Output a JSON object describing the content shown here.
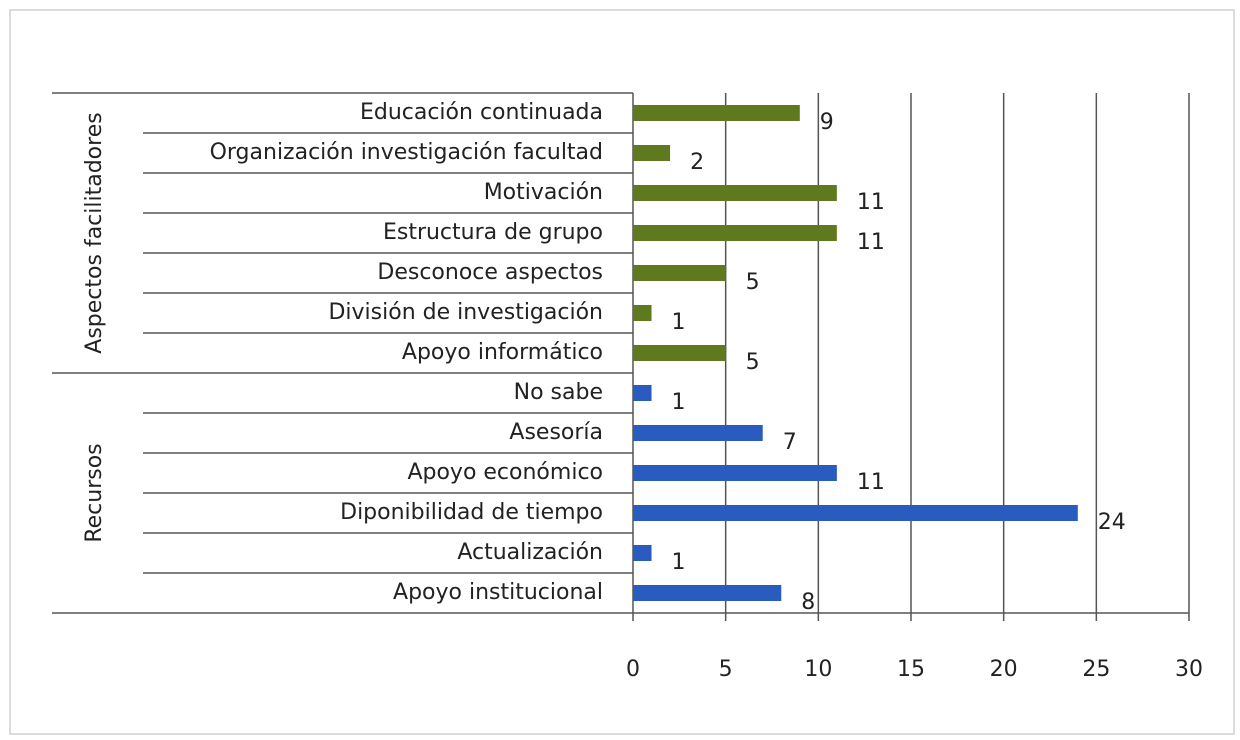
{
  "chart_data": {
    "type": "bar",
    "orientation": "horizontal",
    "groups": [
      {
        "name": "Aspectos facilitadores",
        "color": "#5f7a1e",
        "categories": [
          "Educación continuada",
          "Organización investigación facultad",
          "Motivación",
          "Estructura de grupo",
          "Desconoce aspectos",
          "División de investigación",
          "Apoyo informático"
        ],
        "values": [
          9,
          2,
          11,
          11,
          5,
          1,
          5
        ]
      },
      {
        "name": "Recursos",
        "color": "#2a5bbf",
        "categories": [
          "No sabe",
          "Asesoría",
          "Apoyo económico",
          "Diponibilidad de tiempo",
          "Actualización",
          "Apoyo institucional"
        ],
        "values": [
          1,
          7,
          11,
          24,
          1,
          8
        ]
      }
    ],
    "xlim": [
      0,
      30
    ],
    "xticks": [
      0,
      5,
      10,
      15,
      20,
      25,
      30
    ],
    "grid": true
  }
}
